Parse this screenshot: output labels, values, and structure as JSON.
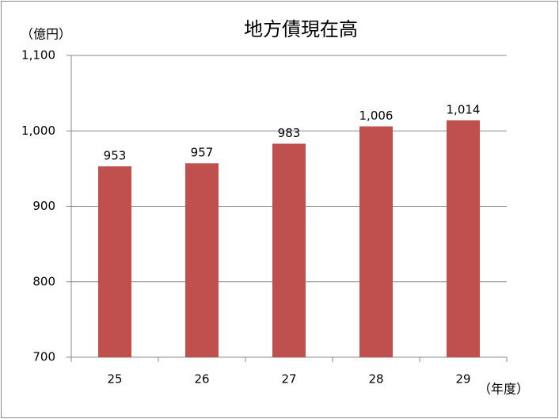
{
  "chart_data": {
    "type": "bar",
    "title": "地方債現在高",
    "y_unit_label": "（億円）",
    "x_unit_label": "（年度）",
    "categories": [
      "25",
      "26",
      "27",
      "28",
      "29"
    ],
    "values": [
      953,
      957,
      983,
      1006,
      1014
    ],
    "value_labels": [
      "953",
      "957",
      "983",
      "1,006",
      "1,014"
    ],
    "color": "#c0504d",
    "ylim": [
      700,
      1100
    ],
    "yticks": [
      700,
      800,
      900,
      {
        "value": 1000,
        "label": "1,000"
      },
      {
        "value": 1100,
        "label": "1,100"
      }
    ],
    "grid": true
  }
}
